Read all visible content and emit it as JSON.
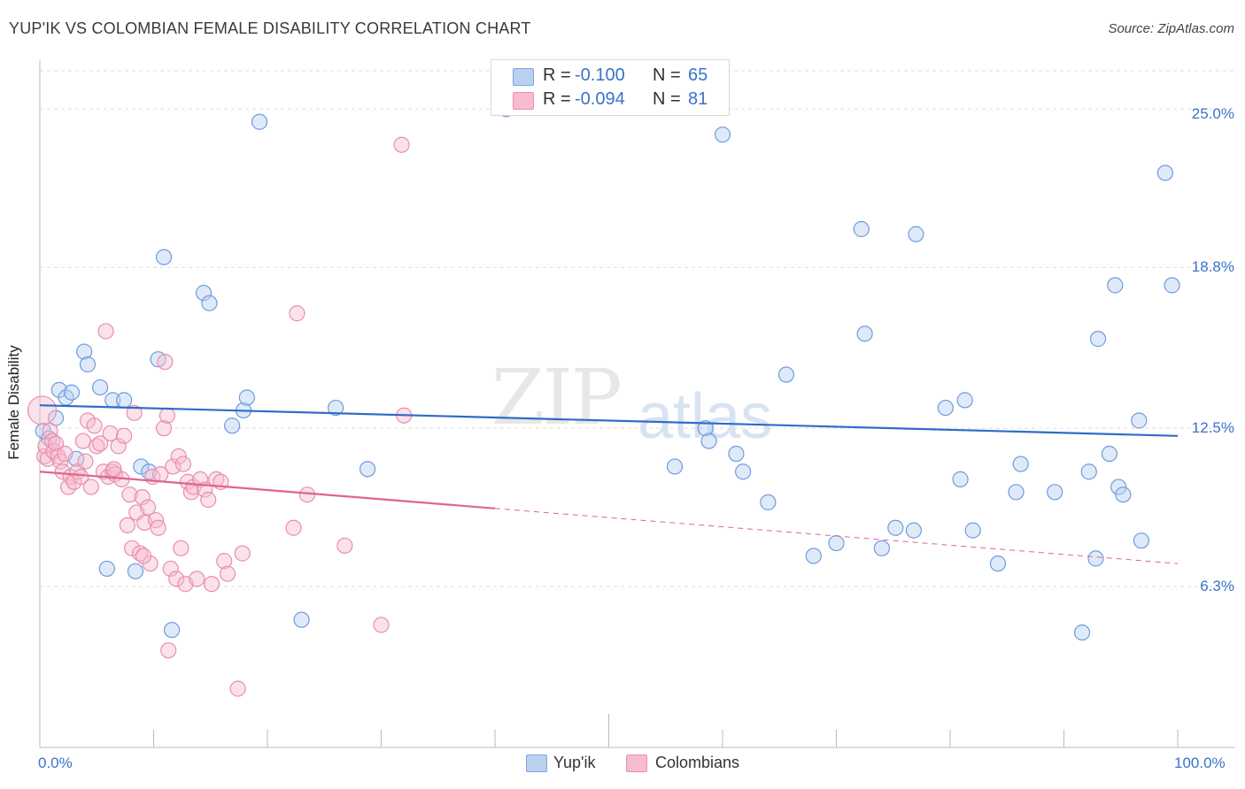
{
  "title": "YUP'IK VS COLOMBIAN FEMALE DISABILITY CORRELATION CHART",
  "source": "Source: ZipAtlas.com",
  "watermark": {
    "a": "ZIP",
    "b": "atlas"
  },
  "colors": {
    "blue": "#3b73c8",
    "blue_fill": "#b9d0f1",
    "blue_line": "#2f6cc9",
    "pink": "#e8719a",
    "pink_fill": "#f7bccf",
    "pink_line": "#e0648f",
    "grid": "#dddddd",
    "axis_label": "#3b73c8"
  },
  "legend_top": {
    "rows": [
      {
        "r_label": "R =",
        "r_value": "-0.100",
        "n_label": "N =",
        "n_value": "65",
        "color": "blue"
      },
      {
        "r_label": "R =",
        "r_value": "-0.094",
        "n_label": "N =",
        "n_value": "81",
        "color": "pink"
      }
    ]
  },
  "legend_bottom": [
    {
      "label": "Yup'ik",
      "color": "blue"
    },
    {
      "label": "Colombians",
      "color": "pink"
    }
  ],
  "chart_data": {
    "type": "scatter",
    "title": "YUP'IK VS COLOMBIAN FEMALE DISABILITY CORRELATION CHART",
    "xlabel": "",
    "ylabel": "Female Disability",
    "xlim": [
      0,
      100
    ],
    "ylim": [
      0,
      26.5
    ],
    "x_tick_labels": [
      "0.0%",
      "100.0%"
    ],
    "y_ticks": [
      6.3,
      12.5,
      18.8,
      25.0
    ],
    "y_tick_labels": [
      "6.3%",
      "12.5%",
      "18.8%",
      "25.0%"
    ],
    "grid": true,
    "legend_position": "top-center",
    "series": [
      {
        "name": "Yup'ik",
        "color": "blue",
        "trend": {
          "x": [
            0,
            100
          ],
          "y": [
            13.4,
            12.2
          ],
          "dashed_from": null
        },
        "points": [
          [
            0.3,
            12.4
          ],
          [
            0.8,
            12.1
          ],
          [
            1.4,
            12.9
          ],
          [
            1.7,
            14.0
          ],
          [
            2.3,
            13.7
          ],
          [
            2.8,
            13.9
          ],
          [
            3.2,
            11.3
          ],
          [
            3.9,
            15.5
          ],
          [
            4.2,
            15.0
          ],
          [
            5.3,
            14.1
          ],
          [
            5.9,
            7.0
          ],
          [
            6.4,
            13.6
          ],
          [
            7.4,
            13.6
          ],
          [
            8.4,
            6.9
          ],
          [
            8.9,
            11.0
          ],
          [
            9.6,
            10.8
          ],
          [
            10.4,
            15.2
          ],
          [
            10.9,
            19.2
          ],
          [
            11.6,
            4.6
          ],
          [
            14.4,
            17.8
          ],
          [
            14.9,
            17.4
          ],
          [
            16.9,
            12.6
          ],
          [
            17.9,
            13.2
          ],
          [
            18.2,
            13.7
          ],
          [
            19.3,
            24.5
          ],
          [
            23.0,
            5.0
          ],
          [
            26.0,
            13.3
          ],
          [
            28.8,
            10.9
          ],
          [
            41.0,
            25.0
          ],
          [
            60.0,
            24.0
          ],
          [
            55.8,
            11.0
          ],
          [
            58.5,
            12.5
          ],
          [
            58.8,
            12.0
          ],
          [
            61.2,
            11.5
          ],
          [
            61.8,
            10.8
          ],
          [
            64.0,
            9.6
          ],
          [
            65.6,
            14.6
          ],
          [
            68.0,
            7.5
          ],
          [
            70.0,
            8.0
          ],
          [
            72.2,
            20.3
          ],
          [
            72.5,
            16.2
          ],
          [
            74.0,
            7.8
          ],
          [
            75.2,
            8.6
          ],
          [
            76.8,
            8.5
          ],
          [
            77.0,
            20.1
          ],
          [
            79.6,
            13.3
          ],
          [
            80.9,
            10.5
          ],
          [
            81.3,
            13.6
          ],
          [
            82.0,
            8.5
          ],
          [
            84.2,
            7.2
          ],
          [
            85.8,
            10.0
          ],
          [
            86.2,
            11.1
          ],
          [
            89.2,
            10.0
          ],
          [
            91.6,
            4.5
          ],
          [
            92.2,
            10.8
          ],
          [
            92.8,
            7.4
          ],
          [
            93.0,
            16.0
          ],
          [
            94.0,
            11.5
          ],
          [
            94.5,
            18.1
          ],
          [
            94.8,
            10.2
          ],
          [
            95.2,
            9.9
          ],
          [
            96.6,
            12.8
          ],
          [
            96.8,
            8.1
          ],
          [
            98.9,
            22.5
          ],
          [
            99.5,
            18.1
          ]
        ]
      },
      {
        "name": "Colombians",
        "color": "pink",
        "trend": {
          "x": [
            0,
            100
          ],
          "y": [
            10.8,
            7.2
          ],
          "solid_until": 40
        },
        "points": [
          [
            0.2,
            13.2
          ],
          [
            0.4,
            11.4
          ],
          [
            0.5,
            11.8
          ],
          [
            0.7,
            11.3
          ],
          [
            0.9,
            12.4
          ],
          [
            1.1,
            12.0
          ],
          [
            1.2,
            11.6
          ],
          [
            1.4,
            11.9
          ],
          [
            1.6,
            11.4
          ],
          [
            1.8,
            11.2
          ],
          [
            2.0,
            10.8
          ],
          [
            2.2,
            11.5
          ],
          [
            2.5,
            10.2
          ],
          [
            2.7,
            10.6
          ],
          [
            3.0,
            10.4
          ],
          [
            3.3,
            10.8
          ],
          [
            3.6,
            10.6
          ],
          [
            3.8,
            12.0
          ],
          [
            4.0,
            11.2
          ],
          [
            4.2,
            12.8
          ],
          [
            4.5,
            10.2
          ],
          [
            4.8,
            12.6
          ],
          [
            5.0,
            11.8
          ],
          [
            5.3,
            11.9
          ],
          [
            5.6,
            10.8
          ],
          [
            5.8,
            16.3
          ],
          [
            6.0,
            10.6
          ],
          [
            6.2,
            12.3
          ],
          [
            6.4,
            10.8
          ],
          [
            6.6,
            10.7
          ],
          [
            6.9,
            11.8
          ],
          [
            7.2,
            10.5
          ],
          [
            7.4,
            12.2
          ],
          [
            7.7,
            8.7
          ],
          [
            7.9,
            9.9
          ],
          [
            8.1,
            7.8
          ],
          [
            8.3,
            13.1
          ],
          [
            8.5,
            9.2
          ],
          [
            8.8,
            7.6
          ],
          [
            9.0,
            9.8
          ],
          [
            9.2,
            8.8
          ],
          [
            9.5,
            9.4
          ],
          [
            9.7,
            7.2
          ],
          [
            9.9,
            10.6
          ],
          [
            10.2,
            8.9
          ],
          [
            10.4,
            8.6
          ],
          [
            10.6,
            10.7
          ],
          [
            10.9,
            12.5
          ],
          [
            11.0,
            15.1
          ],
          [
            11.2,
            13.0
          ],
          [
            11.3,
            3.8
          ],
          [
            11.5,
            7.0
          ],
          [
            11.7,
            11.0
          ],
          [
            12.0,
            6.6
          ],
          [
            12.2,
            11.4
          ],
          [
            12.4,
            7.8
          ],
          [
            12.6,
            11.1
          ],
          [
            12.8,
            6.4
          ],
          [
            13.0,
            10.4
          ],
          [
            13.3,
            10.0
          ],
          [
            13.5,
            10.2
          ],
          [
            13.8,
            6.6
          ],
          [
            14.1,
            10.5
          ],
          [
            14.5,
            10.1
          ],
          [
            14.8,
            9.7
          ],
          [
            15.1,
            6.4
          ],
          [
            15.5,
            10.5
          ],
          [
            15.9,
            10.4
          ],
          [
            16.2,
            7.3
          ],
          [
            16.5,
            6.8
          ],
          [
            17.4,
            2.3
          ],
          [
            17.8,
            7.6
          ],
          [
            22.3,
            8.6
          ],
          [
            22.6,
            17.0
          ],
          [
            23.5,
            9.9
          ],
          [
            26.8,
            7.9
          ],
          [
            30.0,
            4.8
          ],
          [
            31.8,
            23.6
          ],
          [
            32.0,
            13.0
          ],
          [
            6.5,
            10.9
          ],
          [
            9.1,
            7.5
          ]
        ]
      }
    ]
  }
}
